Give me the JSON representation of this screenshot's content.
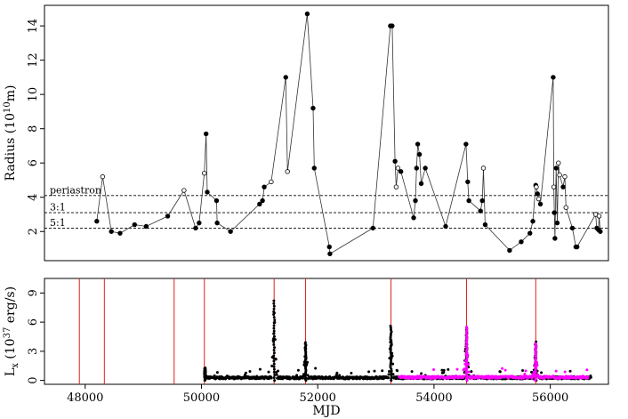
{
  "chart_data": [
    {
      "type": "line",
      "ylabel": "Radius (10",
      "ylabel_sup": "10",
      "ylabel_tail": "m)",
      "xlim": [
        47300,
        57000
      ],
      "ylim": [
        0.3,
        15.2
      ],
      "yticks": [
        2,
        4,
        6,
        8,
        10,
        12,
        14
      ],
      "grid": false,
      "reference_lines": [
        {
          "label": "periastron",
          "y": 4.1
        },
        {
          "label": "3:1",
          "y": 3.1
        },
        {
          "label": "5:1",
          "y": 2.2
        }
      ],
      "series": [
        {
          "marker": "mixed",
          "points": [
            {
              "x": 48200,
              "y": 2.6,
              "filled": true
            },
            {
              "x": 48300,
              "y": 5.2,
              "filled": false
            },
            {
              "x": 48450,
              "y": 2.0,
              "filled": true
            },
            {
              "x": 48600,
              "y": 1.9,
              "filled": true
            },
            {
              "x": 48850,
              "y": 2.4,
              "filled": true
            },
            {
              "x": 49050,
              "y": 2.3,
              "filled": true
            },
            {
              "x": 49420,
              "y": 2.9,
              "filled": true
            },
            {
              "x": 49700,
              "y": 4.4,
              "filled": false
            },
            {
              "x": 49900,
              "y": 2.2,
              "filled": true
            },
            {
              "x": 49960,
              "y": 2.5,
              "filled": true
            },
            {
              "x": 50050,
              "y": 5.4,
              "filled": false
            },
            {
              "x": 50080,
              "y": 7.7,
              "filled": true
            },
            {
              "x": 50100,
              "y": 4.3,
              "filled": true
            },
            {
              "x": 50260,
              "y": 3.8,
              "filled": true
            },
            {
              "x": 50270,
              "y": 2.5,
              "filled": true
            },
            {
              "x": 50500,
              "y": 2.0,
              "filled": true
            },
            {
              "x": 51000,
              "y": 3.6,
              "filled": true
            },
            {
              "x": 51050,
              "y": 3.8,
              "filled": true
            },
            {
              "x": 51080,
              "y": 4.6,
              "filled": true
            },
            {
              "x": 51200,
              "y": 4.9,
              "filled": false
            },
            {
              "x": 51450,
              "y": 11.0,
              "filled": true
            },
            {
              "x": 51480,
              "y": 5.5,
              "filled": false
            },
            {
              "x": 51820,
              "y": 14.7,
              "filled": true
            },
            {
              "x": 51920,
              "y": 9.2,
              "filled": true
            },
            {
              "x": 51940,
              "y": 5.7,
              "filled": true
            },
            {
              "x": 52200,
              "y": 1.1,
              "filled": true
            },
            {
              "x": 52210,
              "y": 0.7,
              "filled": true
            },
            {
              "x": 52950,
              "y": 2.2,
              "filled": true
            },
            {
              "x": 53250,
              "y": 14.0,
              "filled": true
            },
            {
              "x": 53280,
              "y": 14.0,
              "filled": true
            },
            {
              "x": 53330,
              "y": 6.1,
              "filled": true
            },
            {
              "x": 53350,
              "y": 4.6,
              "filled": false
            },
            {
              "x": 53380,
              "y": 5.7,
              "filled": false
            },
            {
              "x": 53430,
              "y": 5.5,
              "filled": true
            },
            {
              "x": 53650,
              "y": 2.8,
              "filled": true
            },
            {
              "x": 53680,
              "y": 3.8,
              "filled": true
            },
            {
              "x": 53700,
              "y": 5.7,
              "filled": true
            },
            {
              "x": 53720,
              "y": 7.1,
              "filled": true
            },
            {
              "x": 53750,
              "y": 6.5,
              "filled": true
            },
            {
              "x": 53780,
              "y": 4.8,
              "filled": true
            },
            {
              "x": 53850,
              "y": 5.7,
              "filled": true
            },
            {
              "x": 54200,
              "y": 2.3,
              "filled": true
            },
            {
              "x": 54550,
              "y": 7.1,
              "filled": true
            },
            {
              "x": 54580,
              "y": 4.9,
              "filled": true
            },
            {
              "x": 54600,
              "y": 3.8,
              "filled": true
            },
            {
              "x": 54800,
              "y": 3.2,
              "filled": true
            },
            {
              "x": 54830,
              "y": 3.8,
              "filled": true
            },
            {
              "x": 54850,
              "y": 5.7,
              "filled": false
            },
            {
              "x": 54880,
              "y": 2.4,
              "filled": true
            },
            {
              "x": 55300,
              "y": 0.9,
              "filled": true
            },
            {
              "x": 55500,
              "y": 1.4,
              "filled": true
            },
            {
              "x": 55650,
              "y": 1.9,
              "filled": true
            },
            {
              "x": 55700,
              "y": 2.6,
              "filled": true
            },
            {
              "x": 55750,
              "y": 4.7,
              "filled": true
            },
            {
              "x": 55760,
              "y": 4.6,
              "filled": false
            },
            {
              "x": 55780,
              "y": 4.2,
              "filled": true
            },
            {
              "x": 55800,
              "y": 3.9,
              "filled": false
            },
            {
              "x": 55830,
              "y": 3.6,
              "filled": true
            },
            {
              "x": 56050,
              "y": 11.0,
              "filled": true
            },
            {
              "x": 56060,
              "y": 4.6,
              "filled": false
            },
            {
              "x": 56070,
              "y": 3.1,
              "filled": true
            },
            {
              "x": 56080,
              "y": 1.6,
              "filled": true
            },
            {
              "x": 56100,
              "y": 5.7,
              "filled": true
            },
            {
              "x": 56120,
              "y": 2.5,
              "filled": true
            },
            {
              "x": 56140,
              "y": 6.0,
              "filled": false
            },
            {
              "x": 56160,
              "y": 5.3,
              "filled": false
            },
            {
              "x": 56220,
              "y": 4.6,
              "filled": true
            },
            {
              "x": 56250,
              "y": 5.2,
              "filled": false
            },
            {
              "x": 56270,
              "y": 3.4,
              "filled": false
            },
            {
              "x": 56380,
              "y": 2.2,
              "filled": true
            },
            {
              "x": 56440,
              "y": 1.1,
              "filled": true
            },
            {
              "x": 56460,
              "y": 1.1,
              "filled": true
            },
            {
              "x": 56780,
              "y": 3.0,
              "filled": false
            },
            {
              "x": 56800,
              "y": 2.2,
              "filled": true
            },
            {
              "x": 56830,
              "y": 2.1,
              "filled": true
            },
            {
              "x": 56840,
              "y": 2.9,
              "filled": false
            },
            {
              "x": 56860,
              "y": 2.0,
              "filled": true
            }
          ]
        }
      ]
    },
    {
      "type": "scatter",
      "xlabel": "MJD",
      "ylabel": "L",
      "ylabel_sub": "x",
      "ylabel_mid": " (10",
      "ylabel_sup": "37",
      "ylabel_tail": " erg/s)",
      "xlim": [
        47300,
        57000
      ],
      "ylim": [
        -0.4,
        10.5
      ],
      "xticks": [
        48000,
        50000,
        52000,
        54000,
        56000
      ],
      "yticks": [
        0,
        3,
        6,
        9
      ],
      "grid": false,
      "vertical_lines": {
        "color": "#e0201b",
        "x": [
          47900,
          48330,
          49530,
          50050,
          51250,
          51790,
          53260,
          54560,
          55750
        ]
      },
      "series": [
        {
          "color": "#000000",
          "x_range": [
            50050,
            56700
          ],
          "baseline": 0.15,
          "bursts": [
            {
              "x": 50060,
              "peak": 1.3
            },
            {
              "x": 51250,
              "peak": 8.2
            },
            {
              "x": 51790,
              "peak": 3.9
            },
            {
              "x": 53260,
              "peak": 5.6
            },
            {
              "x": 54560,
              "peak": 5.4
            },
            {
              "x": 55750,
              "peak": 3.7
            }
          ]
        },
        {
          "color": "#ff00ff",
          "x_range": [
            53400,
            56650
          ],
          "baseline": 0.2,
          "bursts": [
            {
              "x": 54560,
              "peak": 5.5
            },
            {
              "x": 55750,
              "peak": 3.8
            }
          ]
        }
      ]
    }
  ]
}
